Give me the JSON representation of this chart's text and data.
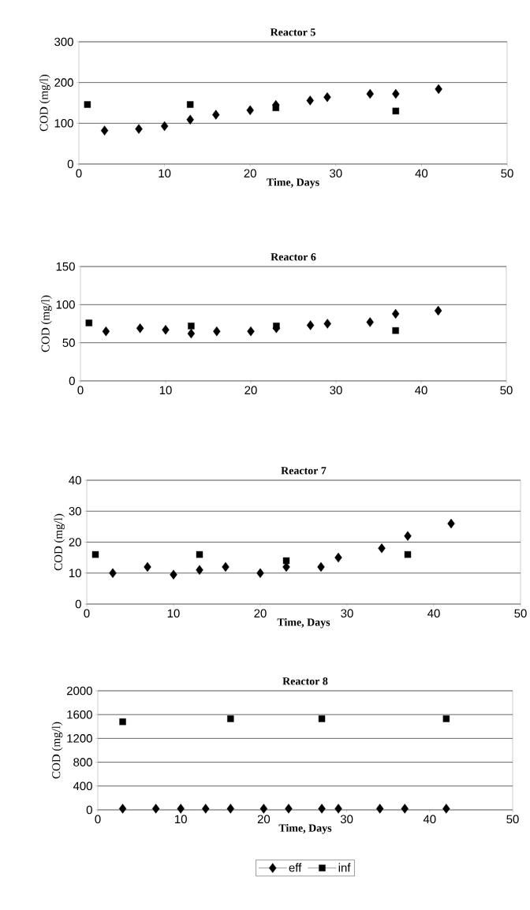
{
  "chart_data": [
    {
      "type": "scatter",
      "title": "Reactor 5",
      "xlabel": "Time, Days",
      "ylabel": "COD (mg/l)",
      "xlim": [
        0,
        50
      ],
      "xticks": [
        0,
        10,
        20,
        30,
        40,
        50
      ],
      "ylim": [
        0,
        300
      ],
      "yticks": [
        0,
        100,
        200,
        300
      ],
      "grid": "y",
      "series": [
        {
          "x": [
            3,
            7,
            10,
            13,
            16,
            20,
            23,
            27,
            29,
            34,
            37,
            42
          ],
          "values": [
            82,
            86,
            93,
            109,
            121,
            132,
            145,
            156,
            164,
            172,
            172,
            184
          ],
          "color": "#000000",
          "marker": "diamond"
        },
        {
          "x": [
            1,
            13,
            23,
            37
          ],
          "values": [
            146,
            146,
            138,
            130
          ],
          "color": "#000000",
          "marker": "square"
        }
      ]
    },
    {
      "type": "scatter",
      "title": "Reactor 6",
      "ylabel": "COD (mg/l)",
      "xlim": [
        0,
        50
      ],
      "xticks": [
        0,
        10,
        20,
        30,
        40,
        50
      ],
      "ylim": [
        0,
        150
      ],
      "yticks": [
        0,
        50,
        100,
        150
      ],
      "grid": "y",
      "series": [
        {
          "x": [
            3,
            7,
            10,
            13,
            16,
            20,
            23,
            27,
            29,
            34,
            37,
            42
          ],
          "values": [
            65,
            69,
            67,
            62,
            65,
            65,
            69,
            73,
            75,
            77,
            88,
            92
          ],
          "color": "#000000",
          "marker": "diamond"
        },
        {
          "x": [
            1,
            13,
            23,
            37
          ],
          "values": [
            76,
            72,
            72,
            66
          ],
          "color": "#000000",
          "marker": "square"
        }
      ]
    },
    {
      "type": "scatter",
      "title": "Reactor 7",
      "xlabel": "Time, Days",
      "ylabel": "COD (mg/l)",
      "xlim": [
        0,
        50
      ],
      "xticks": [
        0,
        10,
        20,
        30,
        40,
        50
      ],
      "ylim": [
        0,
        40
      ],
      "yticks": [
        0,
        10,
        20,
        30,
        40
      ],
      "grid": "y",
      "series": [
        {
          "x": [
            3,
            7,
            10,
            13,
            16,
            20,
            23,
            27,
            29,
            34,
            37,
            42
          ],
          "values": [
            10,
            12,
            9.5,
            11,
            12,
            10,
            12,
            12,
            15,
            18,
            22,
            26
          ],
          "color": "#000000",
          "marker": "diamond"
        },
        {
          "x": [
            1,
            13,
            23,
            37
          ],
          "values": [
            16,
            16,
            14,
            16
          ],
          "color": "#000000",
          "marker": "square"
        }
      ]
    },
    {
      "type": "scatter",
      "title": "Reactor 8",
      "xlabel": "Time, Days",
      "ylabel": "COD (mg/l)",
      "xlim": [
        0,
        50
      ],
      "xticks": [
        0,
        10,
        20,
        30,
        40,
        50
      ],
      "ylim": [
        0,
        2000
      ],
      "yticks": [
        0,
        400,
        800,
        1200,
        1600,
        2000
      ],
      "grid": "y",
      "legend": "bottom",
      "series": [
        {
          "name": "eff",
          "x": [
            3,
            7,
            10,
            13,
            16,
            20,
            23,
            27,
            29,
            34,
            37,
            42
          ],
          "values": [
            20,
            20,
            20,
            20,
            20,
            20,
            20,
            20,
            20,
            20,
            20,
            20
          ],
          "color": "#000000",
          "marker": "diamond"
        },
        {
          "name": "inf",
          "x": [
            3,
            16,
            27,
            42
          ],
          "values": [
            1480,
            1530,
            1530,
            1530
          ],
          "color": "#000000",
          "marker": "square"
        }
      ]
    }
  ]
}
